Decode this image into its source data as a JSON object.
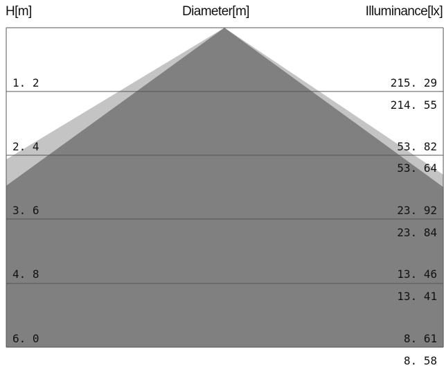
{
  "header": {
    "height_label": "H[m]",
    "diameter_label": "Diameter[m]",
    "illuminance_label": "Illuminance[lx]"
  },
  "rows": [
    {
      "height": "1. 2",
      "illuminance_a": "215. 29",
      "illuminance_b": "214. 55"
    },
    {
      "height": "2. 4",
      "illuminance_a": "53. 82",
      "illuminance_b": "53. 64"
    },
    {
      "height": "3. 6",
      "illuminance_a": "23. 92",
      "illuminance_b": "23. 84"
    },
    {
      "height": "4. 8",
      "illuminance_a": "13. 46",
      "illuminance_b": "13. 41"
    },
    {
      "height": "6. 0",
      "illuminance_a": "8. 61",
      "illuminance_b": "8. 58"
    }
  ],
  "colors": {
    "beam_primary": "#808080",
    "beam_secondary": "#c4c4c4",
    "grid_line": "#555555",
    "text": "#111111"
  }
}
